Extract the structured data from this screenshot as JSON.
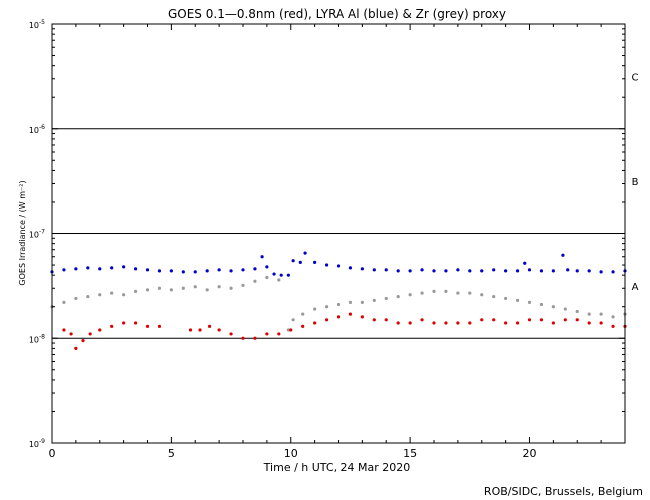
{
  "chart_data": {
    "type": "scatter",
    "title": "GOES 0.1—0.8nm (red), LYRA Al (blue) & Zr (grey) proxy",
    "xlabel": "Time / h UTC, 24 Mar 2020",
    "ylabel": "GOES Irradiance / (W m⁻²)",
    "xlim": [
      0,
      24
    ],
    "ylim": [
      1e-09,
      1e-05
    ],
    "yscale": "log",
    "x_ticks": [
      0,
      5,
      10,
      15,
      20
    ],
    "x_tick_labels": [
      "0",
      "5",
      "10",
      "15",
      "20"
    ],
    "y_ticks": [
      1e-09,
      1e-08,
      1e-07,
      1e-06,
      1e-05
    ],
    "y_tick_labels": [
      {
        "base": "10",
        "exp": "-9"
      },
      {
        "base": "10",
        "exp": "-8"
      },
      {
        "base": "10",
        "exp": "-7"
      },
      {
        "base": "10",
        "exp": "-6"
      },
      {
        "base": "10",
        "exp": "-5"
      }
    ],
    "flare_class_lines": [
      1e-08,
      1e-07,
      1e-06
    ],
    "flare_class_labels": [
      {
        "label": "A",
        "at": 3.16e-08
      },
      {
        "label": "B",
        "at": 3.16e-07
      },
      {
        "label": "C",
        "at": 3.16e-06
      }
    ],
    "series": [
      {
        "color": "#0000cc",
        "x": [
          0.0,
          0.5,
          1.0,
          1.5,
          2.0,
          2.5,
          3.0,
          3.5,
          4.0,
          4.5,
          5.0,
          5.5,
          6.0,
          6.5,
          7.0,
          7.5,
          8.0,
          8.5,
          8.8,
          9.0,
          9.3,
          9.6,
          9.9,
          10.1,
          10.4,
          10.6,
          11.0,
          11.5,
          12.0,
          12.5,
          13.0,
          13.5,
          14.0,
          14.5,
          15.0,
          15.5,
          16.0,
          16.5,
          17.0,
          17.5,
          18.0,
          18.5,
          19.0,
          19.5,
          19.8,
          20.0,
          20.5,
          21.0,
          21.4,
          21.6,
          22.0,
          22.5,
          23.0,
          23.5,
          24.0
        ],
        "y": [
          4.3e-08,
          4.5e-08,
          4.6e-08,
          4.7e-08,
          4.6e-08,
          4.7e-08,
          4.8e-08,
          4.6e-08,
          4.5e-08,
          4.4e-08,
          4.4e-08,
          4.3e-08,
          4.3e-08,
          4.4e-08,
          4.5e-08,
          4.4e-08,
          4.5e-08,
          4.6e-08,
          6e-08,
          4.8e-08,
          4.1e-08,
          4e-08,
          4e-08,
          5.5e-08,
          5.3e-08,
          6.5e-08,
          5.3e-08,
          5e-08,
          4.9e-08,
          4.7e-08,
          4.6e-08,
          4.5e-08,
          4.5e-08,
          4.4e-08,
          4.4e-08,
          4.5e-08,
          4.4e-08,
          4.4e-08,
          4.5e-08,
          4.4e-08,
          4.4e-08,
          4.5e-08,
          4.4e-08,
          4.4e-08,
          5.2e-08,
          4.5e-08,
          4.4e-08,
          4.4e-08,
          6.2e-08,
          4.5e-08,
          4.4e-08,
          4.4e-08,
          4.3e-08,
          4.3e-08,
          4.4e-08
        ]
      },
      {
        "color": "#999999",
        "x": [
          0.0,
          0.5,
          1.0,
          1.5,
          2.0,
          2.5,
          3.0,
          3.5,
          4.0,
          4.5,
          5.0,
          5.5,
          6.0,
          6.5,
          7.0,
          7.5,
          8.0,
          8.5,
          9.0,
          9.5,
          9.9,
          10.1,
          10.5,
          11.0,
          11.5,
          12.0,
          12.5,
          13.0,
          13.5,
          14.0,
          14.5,
          15.0,
          15.5,
          16.0,
          16.5,
          17.0,
          17.5,
          18.0,
          18.5,
          19.0,
          19.5,
          20.0,
          20.5,
          21.0,
          21.5,
          22.0,
          22.5,
          23.0,
          23.5,
          24.0
        ],
        "y": [
          2e-08,
          2.2e-08,
          2.4e-08,
          2.5e-08,
          2.6e-08,
          2.7e-08,
          2.6e-08,
          2.8e-08,
          2.9e-08,
          3e-08,
          2.9e-08,
          3e-08,
          3.1e-08,
          2.9e-08,
          3.1e-08,
          3e-08,
          3.2e-08,
          3.5e-08,
          3.8e-08,
          3.6e-08,
          1.2e-08,
          1.5e-08,
          1.7e-08,
          1.9e-08,
          2e-08,
          2.1e-08,
          2.2e-08,
          2.2e-08,
          2.3e-08,
          2.4e-08,
          2.5e-08,
          2.6e-08,
          2.7e-08,
          2.8e-08,
          2.8e-08,
          2.7e-08,
          2.7e-08,
          2.6e-08,
          2.5e-08,
          2.4e-08,
          2.3e-08,
          2.2e-08,
          2.1e-08,
          2e-08,
          1.9e-08,
          1.8e-08,
          1.7e-08,
          1.7e-08,
          1.6e-08,
          1.7e-08
        ]
      },
      {
        "color": "#dd0000",
        "x": [
          0.5,
          0.8,
          1.0,
          1.3,
          1.6,
          2.0,
          2.5,
          3.0,
          3.5,
          4.0,
          4.5,
          5.8,
          6.2,
          6.6,
          7.0,
          7.5,
          8.0,
          8.5,
          9.0,
          9.5,
          10.0,
          10.5,
          11.0,
          11.5,
          12.0,
          12.5,
          13.0,
          13.5,
          14.0,
          14.5,
          15.0,
          15.5,
          16.0,
          16.5,
          17.0,
          17.5,
          18.0,
          18.5,
          19.0,
          19.5,
          20.0,
          20.5,
          21.0,
          21.5,
          22.0,
          22.5,
          23.0,
          23.5,
          24.0
        ],
        "y": [
          1.2e-08,
          1.1e-08,
          8e-09,
          9.5e-09,
          1.1e-08,
          1.2e-08,
          1.3e-08,
          1.4e-08,
          1.4e-08,
          1.3e-08,
          1.3e-08,
          1.2e-08,
          1.2e-08,
          1.3e-08,
          1.2e-08,
          1.1e-08,
          1e-08,
          1e-08,
          1.1e-08,
          1.1e-08,
          1.2e-08,
          1.3e-08,
          1.4e-08,
          1.5e-08,
          1.6e-08,
          1.7e-08,
          1.6e-08,
          1.5e-08,
          1.5e-08,
          1.4e-08,
          1.4e-08,
          1.5e-08,
          1.4e-08,
          1.4e-08,
          1.4e-08,
          1.4e-08,
          1.5e-08,
          1.5e-08,
          1.4e-08,
          1.4e-08,
          1.5e-08,
          1.5e-08,
          1.4e-08,
          1.5e-08,
          1.5e-08,
          1.4e-08,
          1.4e-08,
          1.3e-08,
          1.3e-08
        ]
      }
    ]
  },
  "footer": {
    "credit": "ROB/SIDC, Brussels, Belgium"
  }
}
